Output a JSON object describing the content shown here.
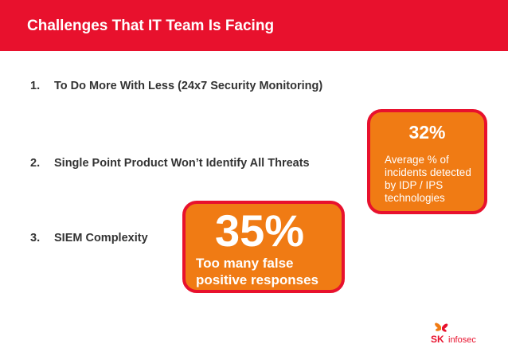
{
  "slide": {
    "title": "Challenges That IT Team Is Facing"
  },
  "challenges": [
    {
      "number": "1.",
      "text": "To Do More With Less (24x7 Security Monitoring)"
    },
    {
      "number": "2.",
      "text": "Single Point Product Won’t Identify All Threats"
    },
    {
      "number": "3.",
      "text": "SIEM Complexity"
    }
  ],
  "callouts": {
    "idp_ips": {
      "value": "32%",
      "line1": "Average % of",
      "line2": "incidents detected",
      "line3": "by IDP / IPS",
      "line4": "technologies"
    },
    "false_positives": {
      "value": "35%",
      "line1": "Too many false",
      "line2": "positive responses"
    }
  },
  "logo": {
    "mark": "SK",
    "name": "infosec"
  },
  "colors": {
    "brand_red": "#e8112d",
    "callout_orange": "#f07b14",
    "text_gray": "#333333"
  }
}
